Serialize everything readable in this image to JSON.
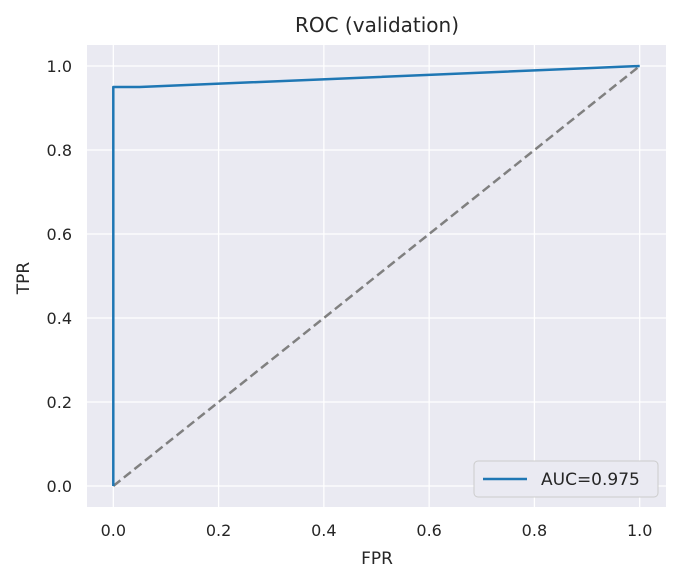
{
  "chart_data": {
    "type": "line",
    "title": "ROC (validation)",
    "xlabel": "FPR",
    "ylabel": "TPR",
    "xlim": [
      -0.05,
      1.05
    ],
    "ylim": [
      -0.05,
      1.05
    ],
    "xticks": [
      0.0,
      0.2,
      0.4,
      0.6,
      0.8,
      1.0
    ],
    "yticks": [
      0.0,
      0.2,
      0.4,
      0.6,
      0.8,
      1.0
    ],
    "xtick_labels": [
      "0.0",
      "0.2",
      "0.4",
      "0.6",
      "0.8",
      "1.0"
    ],
    "ytick_labels": [
      "0.0",
      "0.2",
      "0.4",
      "0.6",
      "0.8",
      "1.0"
    ],
    "grid": true,
    "legend_position": "bottom-right",
    "series": [
      {
        "name": "AUC=0.975",
        "color": "#1f77b4",
        "style": "solid",
        "x": [
          0.0,
          0.0,
          0.05,
          1.0
        ],
        "y": [
          0.0,
          0.95,
          0.95,
          1.0
        ]
      },
      {
        "color": "#808080",
        "style": "dashed",
        "x": [
          0.0,
          1.0
        ],
        "y": [
          0.0,
          1.0
        ]
      }
    ]
  },
  "colors": {
    "plot_background": "#eaeaf2",
    "grid": "#ffffff",
    "text": "#262626"
  }
}
